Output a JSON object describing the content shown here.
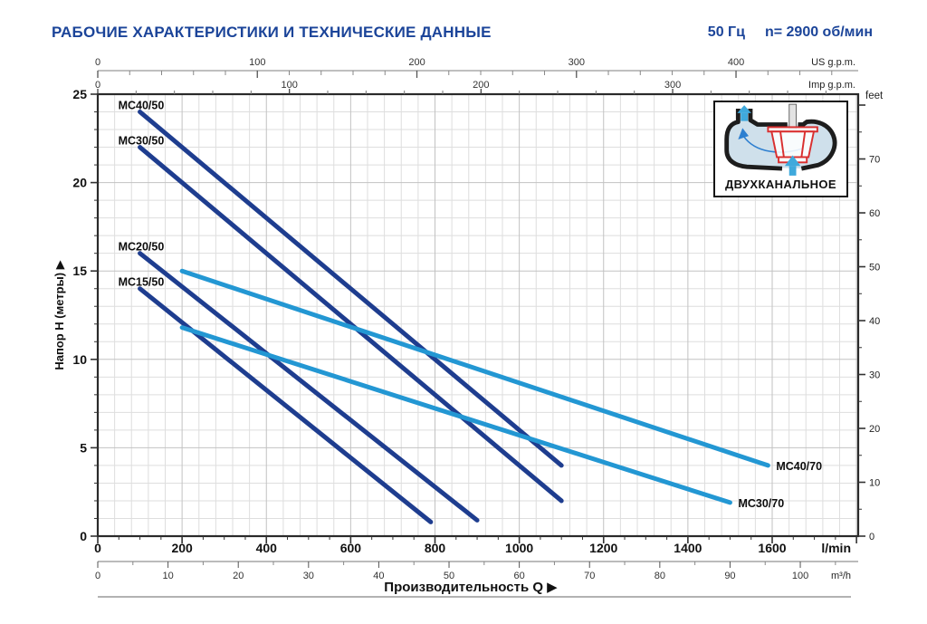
{
  "header": {
    "title": "РАБОЧИЕ ХАРАКТЕРИСТИКИ И ТЕХНИЧЕСКИЕ ДАННЫЕ",
    "frequency": "50 Гц",
    "speed": "n= 2900 об/мин"
  },
  "inset": {
    "label": "ДВУХКАНАЛЬНОЕ"
  },
  "colors": {
    "title_blue": "#1b4499",
    "dark_line": "#1e3d8f",
    "light_line": "#2397d3",
    "grid_minor": "#dedede",
    "grid_major": "#c2c2c2",
    "plot_border": "#2a2a2a"
  },
  "chart_data": {
    "type": "line",
    "x_label": "Производительность Q  ▶",
    "y_label": "Напор H (метры)  ▶",
    "x_unit_primary": "l/min",
    "x_unit_secondary": "m³/h",
    "x_unit_top1": "US g.p.m.",
    "x_unit_top2": "Imp g.p.m.",
    "y_unit_right": "feet",
    "xlim_lmin": [
      0,
      1804
    ],
    "ylim_m": [
      0,
      25
    ],
    "grid": {
      "minor_x_lmin": 40,
      "major_x_lmin": 200,
      "minor_y_m": 1,
      "major_y_m": 5
    },
    "axes": {
      "lmin_ticks": [
        0,
        200,
        400,
        600,
        800,
        1000,
        1200,
        1400,
        1600
      ],
      "m3h_ticks": [
        0,
        10,
        20,
        30,
        40,
        50,
        60,
        70,
        80,
        90,
        100
      ],
      "us_gpm_ticks": [
        0,
        100,
        200,
        300,
        400
      ],
      "imp_gpm_ticks": [
        0,
        100,
        200,
        300
      ],
      "meters_ticks": [
        0,
        5,
        10,
        15,
        20,
        25
      ],
      "feet_ticks": [
        0,
        10,
        20,
        30,
        40,
        50,
        60,
        70
      ]
    },
    "series": [
      {
        "name": "MC40/50",
        "color": "dark",
        "label_at": "start",
        "points_lmin_m": [
          [
            100,
            24
          ],
          [
            1100,
            4
          ]
        ]
      },
      {
        "name": "MC30/50",
        "color": "dark",
        "label_at": "start",
        "points_lmin_m": [
          [
            100,
            22
          ],
          [
            1100,
            2
          ]
        ]
      },
      {
        "name": "MC20/50",
        "color": "dark",
        "label_at": "start",
        "points_lmin_m": [
          [
            100,
            16
          ],
          [
            900,
            0.9
          ]
        ]
      },
      {
        "name": "MC15/50",
        "color": "dark",
        "label_at": "start",
        "points_lmin_m": [
          [
            100,
            14
          ],
          [
            790,
            0.8
          ]
        ]
      },
      {
        "name": "MC40/70",
        "color": "light",
        "label_at": "end",
        "points_lmin_m": [
          [
            200,
            15
          ],
          [
            1590,
            4
          ]
        ]
      },
      {
        "name": "MC30/70",
        "color": "light",
        "label_at": "end",
        "points_lmin_m": [
          [
            200,
            11.8
          ],
          [
            1500,
            1.9
          ]
        ]
      }
    ]
  }
}
